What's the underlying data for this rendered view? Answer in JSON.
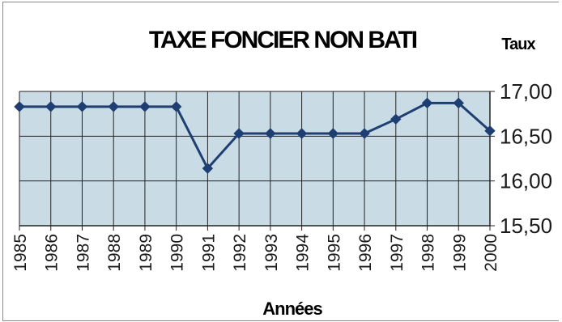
{
  "chart_data": {
    "type": "line",
    "title": "TAXE FONCIER NON BATI",
    "ylabel": "Taux",
    "xlabel": "Années",
    "categories": [
      "1985",
      "1986",
      "1987",
      "1988",
      "1989",
      "1990",
      "1991",
      "1992",
      "1993",
      "1994",
      "1995",
      "1996",
      "1997",
      "1998",
      "1999",
      "2000"
    ],
    "series": [
      {
        "values": [
          16.83,
          16.83,
          16.83,
          16.83,
          16.83,
          16.83,
          16.14,
          16.53,
          16.53,
          16.53,
          16.53,
          16.53,
          16.69,
          16.87,
          16.87,
          16.56
        ]
      }
    ],
    "ylim": [
      15.5,
      17.0
    ],
    "yticks": [
      "17,00",
      "16,50",
      "16,00",
      "15,50"
    ],
    "ytick_values": [
      17.0,
      16.5,
      16.0,
      15.5
    ],
    "grid": true,
    "y_axis_side": "right",
    "line_color": "#1f3f73",
    "plot_background": "#c9dce6",
    "grid_color": "#222222"
  }
}
